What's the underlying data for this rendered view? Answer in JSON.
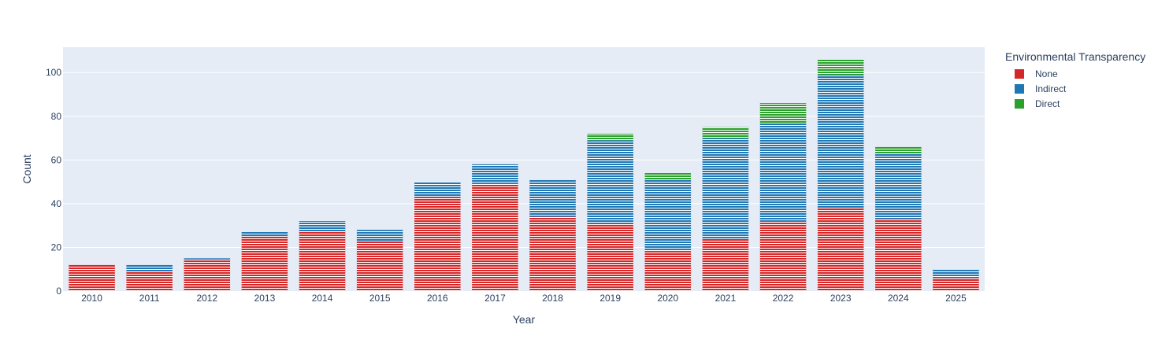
{
  "chart_data": {
    "type": "bar",
    "stacked": true,
    "categories": [
      "2010",
      "2011",
      "2012",
      "2013",
      "2014",
      "2015",
      "2016",
      "2017",
      "2018",
      "2019",
      "2020",
      "2021",
      "2022",
      "2023",
      "2024",
      "2025"
    ],
    "series": [
      {
        "name": "None",
        "color": "#d62728",
        "values": [
          12,
          9,
          14,
          25,
          27,
          23,
          43,
          49,
          34,
          31,
          18,
          24,
          32,
          38,
          33,
          6
        ]
      },
      {
        "name": "Indirect",
        "color": "#1f77b4",
        "values": [
          0,
          3,
          1,
          2,
          5,
          5,
          7,
          9,
          17,
          38,
          33,
          46,
          45,
          61,
          30,
          4
        ]
      },
      {
        "name": "Direct",
        "color": "#2ca02c",
        "values": [
          0,
          0,
          0,
          0,
          0,
          0,
          0,
          0,
          0,
          3,
          3,
          5,
          9,
          7,
          3,
          0
        ]
      }
    ],
    "xlabel": "Year",
    "ylabel": "Count",
    "ylim": [
      0,
      111.6
    ],
    "yticks": [
      "0",
      "20",
      "40",
      "60",
      "80",
      "100"
    ],
    "legend_title": "Environmental Transparency",
    "legend_position": "top-right",
    "grid": true,
    "plot_background": "#e5ecf6"
  }
}
